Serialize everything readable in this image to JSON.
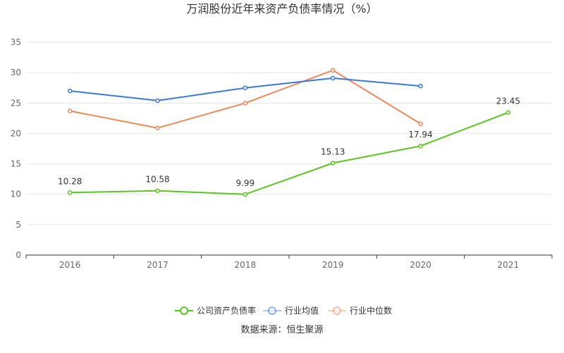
{
  "chart_data": {
    "type": "line",
    "title": "万润股份近年来资产负债率情况（%）",
    "categories": [
      "2016",
      "2017",
      "2018",
      "2019",
      "2020",
      "2021"
    ],
    "yticks": [
      "0",
      "5",
      "10",
      "15",
      "20",
      "25",
      "30",
      "35"
    ],
    "ylim": [
      0,
      35
    ],
    "grid": true,
    "legend_position": "bottom",
    "series": [
      {
        "name": "公司资产负债率",
        "color": "#5cc422",
        "values": [
          10.28,
          10.58,
          9.99,
          15.13,
          17.94,
          23.45
        ],
        "labels": [
          "10.28",
          "10.58",
          "9.99",
          "15.13",
          "17.94",
          "23.45"
        ]
      },
      {
        "name": "行业均值",
        "color": "#3a78d8",
        "values": [
          27.0,
          25.4,
          27.5,
          29.1,
          27.8,
          null
        ]
      },
      {
        "name": "行业中位数",
        "color": "#f08759",
        "values": [
          23.7,
          20.9,
          25.0,
          30.4,
          21.6,
          null
        ]
      }
    ]
  },
  "source": "数据来源：恒生聚源"
}
